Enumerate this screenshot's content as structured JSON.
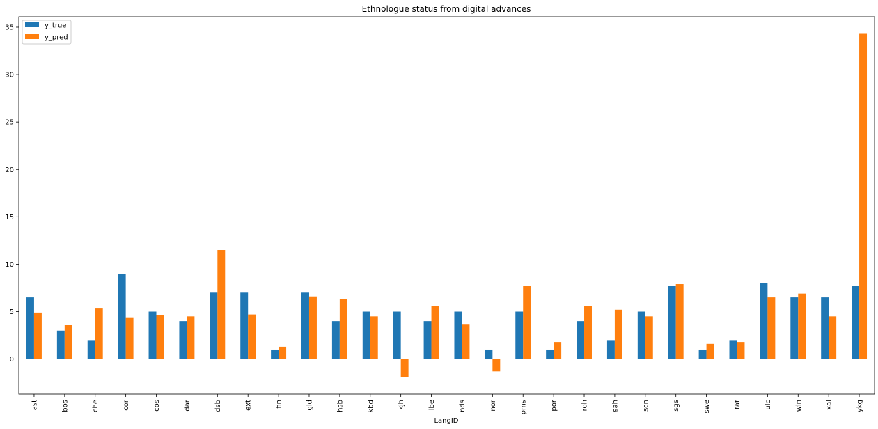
{
  "chart_data": {
    "type": "bar",
    "title": "Ethnologue status from digital advances",
    "xlabel": "LangID",
    "ylabel": "",
    "ylim": [
      -3.7,
      36.1
    ],
    "yticks": [
      0,
      5,
      10,
      15,
      20,
      25,
      30,
      35
    ],
    "grid": false,
    "legend_position": "top-left",
    "categories": [
      "ast",
      "bos",
      "che",
      "cor",
      "cos",
      "dar",
      "dsb",
      "ext",
      "fin",
      "gld",
      "hsb",
      "kbd",
      "kjh",
      "lbe",
      "nds",
      "nor",
      "pms",
      "por",
      "roh",
      "sah",
      "scn",
      "sgs",
      "swe",
      "tat",
      "ulc",
      "wln",
      "xal",
      "ykg"
    ],
    "series": [
      {
        "name": "y_true",
        "color": "#1f77b4",
        "values": [
          6.5,
          3,
          2,
          9,
          5,
          4,
          7,
          7,
          1,
          7,
          4,
          5,
          5,
          4,
          5,
          1,
          5,
          1,
          4,
          2,
          5,
          7.7,
          1,
          2,
          8,
          6.5,
          6.5,
          7.7
        ]
      },
      {
        "name": "y_pred",
        "color": "#ff7f0e",
        "values": [
          4.9,
          3.6,
          5.4,
          4.4,
          4.6,
          4.5,
          11.5,
          4.7,
          1.3,
          6.6,
          6.3,
          4.5,
          -1.9,
          5.6,
          3.7,
          -1.3,
          7.7,
          1.8,
          5.6,
          5.2,
          4.5,
          7.9,
          1.6,
          1.8,
          6.5,
          6.9,
          4.5,
          34.3
        ]
      }
    ]
  }
}
